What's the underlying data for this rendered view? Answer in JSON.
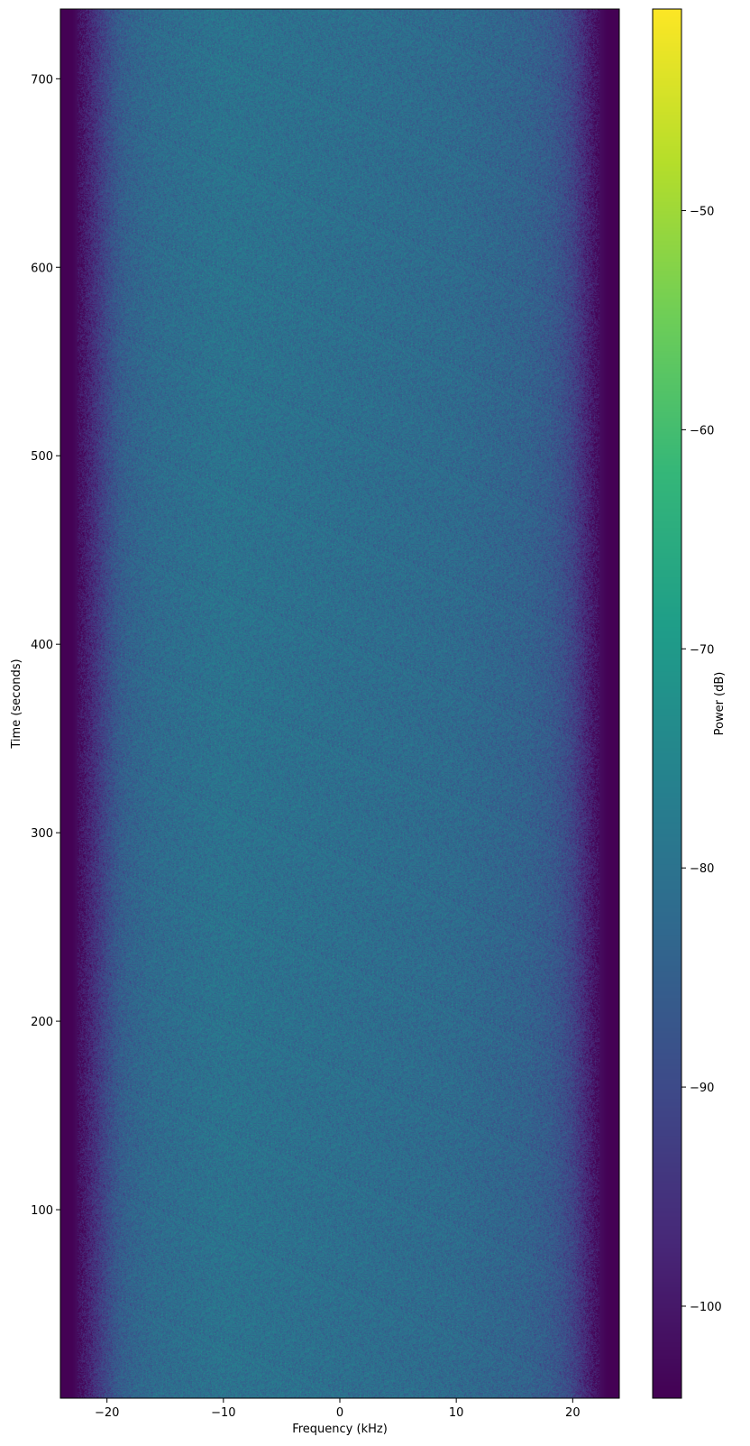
{
  "chart_data": {
    "type": "heatmap",
    "title": "",
    "xlabel": "Frequency (kHz)",
    "ylabel": "Time (seconds)",
    "xlim": [
      -24,
      24
    ],
    "ylim": [
      0,
      737
    ],
    "xticks": [
      -20,
      -10,
      0,
      10,
      20
    ],
    "xtick_labels": [
      "−20",
      "−10",
      "0",
      "10",
      "20"
    ],
    "yticks": [
      100,
      200,
      300,
      400,
      500,
      600,
      700
    ],
    "ytick_labels": [
      "100",
      "200",
      "300",
      "400",
      "500",
      "600",
      "700"
    ],
    "colormap": "viridis",
    "colorbar": {
      "label": "Power (dB)",
      "range": [
        -104.2,
        -40.8
      ],
      "ticks": [
        -100,
        -90,
        -80,
        -70,
        -60,
        -50
      ],
      "tick_labels": [
        "−100",
        "−90",
        "−80",
        "−70",
        "−60",
        "−50"
      ]
    },
    "mean_power_profile": {
      "frequency_khz": [
        -24,
        -23,
        -22,
        -21,
        -20,
        -19,
        -18,
        -16,
        -10,
        0,
        10,
        16,
        18,
        19,
        20,
        21,
        22,
        23,
        24
      ],
      "power_db": [
        -104.5,
        -104,
        -100,
        -95,
        -90,
        -86,
        -84,
        -82,
        -80,
        -81,
        -82,
        -84,
        -86,
        -88,
        -91,
        -96,
        -101,
        -104,
        -104.5
      ]
    },
    "noise_std_db": 3,
    "grid": false,
    "legend": "none"
  }
}
